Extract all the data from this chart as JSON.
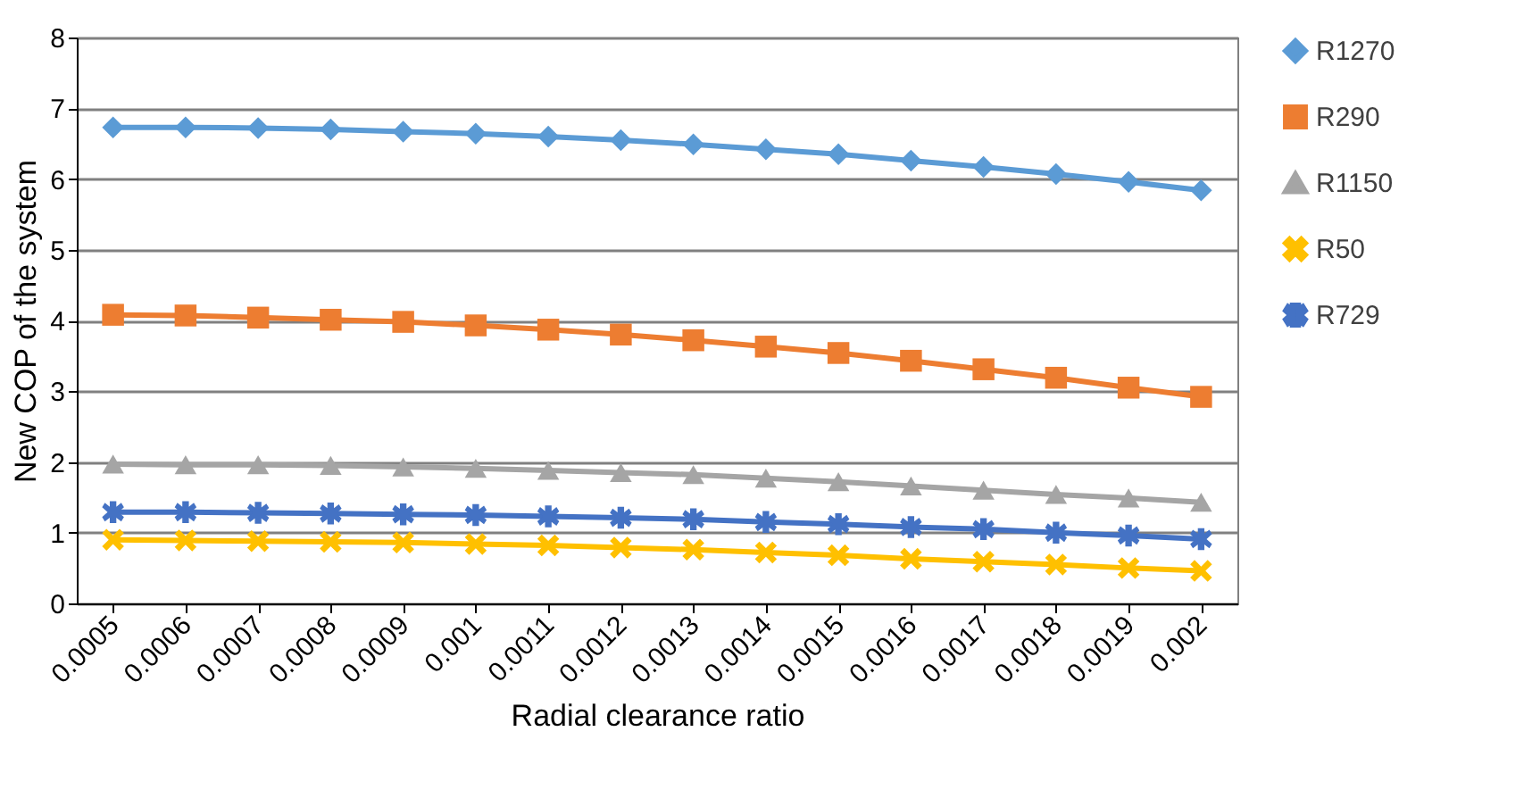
{
  "chart_data": {
    "type": "line",
    "xlabel": "Radial clearance ratio",
    "ylabel": "New COP of the system",
    "categories": [
      "0.0005",
      "0.0006",
      "0.0007",
      "0.0008",
      "0.0009",
      "0.001",
      "0.0011",
      "0.0012",
      "0.0013",
      "0.0014",
      "0.0015",
      "0.0016",
      "0.0017",
      "0.0018",
      "0.0019",
      "0.002"
    ],
    "series": [
      {
        "name": "R1270",
        "color": "#5b9bd5",
        "marker": "diamond",
        "values": [
          6.73,
          6.73,
          6.72,
          6.7,
          6.67,
          6.64,
          6.6,
          6.55,
          6.49,
          6.42,
          6.35,
          6.26,
          6.17,
          6.07,
          5.96,
          5.84
        ]
      },
      {
        "name": "R290",
        "color": "#ed7d31",
        "marker": "square",
        "values": [
          4.08,
          4.07,
          4.04,
          4.01,
          3.98,
          3.93,
          3.87,
          3.8,
          3.72,
          3.63,
          3.54,
          3.43,
          3.31,
          3.19,
          3.05,
          2.92
        ]
      },
      {
        "name": "R1150",
        "color": "#a5a5a5",
        "marker": "triangle",
        "values": [
          1.97,
          1.96,
          1.96,
          1.95,
          1.93,
          1.91,
          1.88,
          1.85,
          1.82,
          1.77,
          1.72,
          1.66,
          1.6,
          1.54,
          1.49,
          1.43
        ]
      },
      {
        "name": "R50",
        "color": "#ffc000",
        "marker": "cross",
        "values": [
          0.9,
          0.89,
          0.88,
          0.87,
          0.86,
          0.84,
          0.82,
          0.79,
          0.76,
          0.72,
          0.68,
          0.63,
          0.59,
          0.55,
          0.5,
          0.46
        ]
      },
      {
        "name": "R729",
        "color": "#4472c4",
        "marker": "star",
        "values": [
          1.29,
          1.29,
          1.28,
          1.27,
          1.26,
          1.25,
          1.23,
          1.21,
          1.19,
          1.15,
          1.12,
          1.08,
          1.05,
          1.0,
          0.96,
          0.91
        ]
      }
    ],
    "ylim": [
      0,
      8
    ],
    "yticks": [
      0,
      1,
      2,
      3,
      4,
      5,
      6,
      7,
      8
    ],
    "grid": "y",
    "legend": "right",
    "line_style": "solid"
  }
}
